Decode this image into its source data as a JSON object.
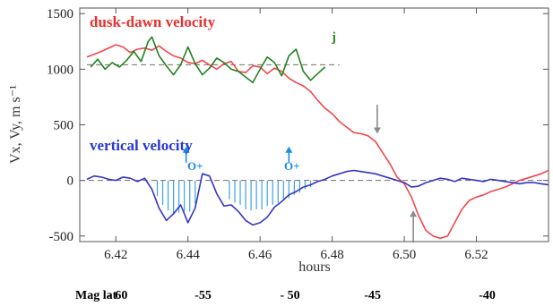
{
  "chart_data": {
    "type": "line",
    "xlabel": "hours",
    "ylabel": "Vx, Vy, m s⁻¹",
    "xlim": [
      6.41,
      6.54
    ],
    "ylim": [
      -550,
      1550
    ],
    "x_ticks": [
      6.42,
      6.44,
      6.46,
      6.48,
      6.5,
      6.52
    ],
    "x_tick_labels": [
      "6.42",
      "6.44",
      "6.46",
      "6.48",
      "6.50",
      "6.52"
    ],
    "y_ticks": [
      -500,
      0,
      500,
      1000,
      1500
    ],
    "y_tick_labels": [
      "-500",
      "0",
      "500",
      "1000",
      "1500"
    ],
    "reference_lines": [
      {
        "y": 0,
        "x_range": [
          6.41,
          6.54
        ],
        "style": "dashed"
      },
      {
        "y": 1040,
        "x_range": [
          6.412,
          6.482
        ],
        "style": "dashed"
      }
    ],
    "annotations": {
      "dusk_dawn": "dusk-dawn velocity",
      "vertical": "vertical velocity",
      "j": "j",
      "oplus_1": "O+",
      "oplus_2": "O+"
    },
    "arrows": [
      {
        "name": "oplus-arrow-1",
        "x": 6.4395,
        "y_from": 160,
        "y_to": 305,
        "color": "#1a8de0"
      },
      {
        "name": "oplus-arrow-2",
        "x": 6.468,
        "y_from": 160,
        "y_to": 305,
        "color": "#1a8de0"
      },
      {
        "name": "gray-arrow-down",
        "x": 6.4925,
        "y_from": 680,
        "y_to": 420,
        "color": "#8a8a8a"
      },
      {
        "name": "gray-arrow-up",
        "x": 6.5025,
        "y_from": -560,
        "y_to": -270,
        "color": "#8a8a8a"
      }
    ],
    "series": [
      {
        "color": "#f2474d",
        "x": [
          6.412,
          6.416,
          6.42,
          6.422,
          6.424,
          6.426,
          6.428,
          6.43,
          6.432,
          6.434,
          6.436,
          6.438,
          6.44,
          6.442,
          6.444,
          6.446,
          6.448,
          6.45,
          6.452,
          6.454,
          6.456,
          6.458,
          6.46,
          6.462,
          6.464,
          6.466,
          6.468,
          6.47,
          6.472,
          6.474,
          6.476,
          6.478,
          6.48,
          6.482,
          6.484,
          6.486,
          6.488,
          6.49,
          6.492,
          6.494,
          6.496,
          6.498,
          6.5,
          6.502,
          6.504,
          6.506,
          6.508,
          6.51,
          6.512,
          6.514,
          6.516,
          6.518,
          6.52,
          6.522,
          6.524,
          6.526,
          6.528,
          6.53,
          6.532,
          6.534,
          6.536,
          6.538,
          6.54
        ],
        "y": [
          1110,
          1160,
          1220,
          1200,
          1150,
          1180,
          1190,
          1170,
          1210,
          1160,
          1120,
          1100,
          1060,
          1050,
          1080,
          1040,
          1000,
          1050,
          1070,
          980,
          970,
          1030,
          1020,
          960,
          1010,
          980,
          920,
          880,
          850,
          800,
          720,
          650,
          600,
          530,
          480,
          430,
          420,
          400,
          350,
          250,
          150,
          30,
          -30,
          -150,
          -320,
          -450,
          -500,
          -520,
          -500,
          -380,
          -260,
          -180,
          -150,
          -130,
          -100,
          -80,
          -60,
          -30,
          0,
          20,
          40,
          60,
          90
        ]
      },
      {
        "color": "#218321",
        "x": [
          6.413,
          6.415,
          6.417,
          6.419,
          6.421,
          6.423,
          6.425,
          6.427,
          6.429,
          6.43,
          6.432,
          6.434,
          6.436,
          6.438,
          6.44,
          6.442,
          6.444,
          6.446,
          6.448,
          6.45,
          6.452,
          6.454,
          6.456,
          6.458,
          6.46,
          6.462,
          6.464,
          6.466,
          6.468,
          6.47,
          6.472,
          6.474,
          6.476,
          6.478
        ],
        "y": [
          1020,
          1090,
          1000,
          1060,
          1020,
          1080,
          1160,
          1070,
          1250,
          1290,
          1120,
          1030,
          950,
          1040,
          1200,
          1050,
          950,
          1010,
          1100,
          1060,
          1000,
          980,
          930,
          880,
          1000,
          1110,
          1060,
          940,
          1120,
          1180,
          980,
          900,
          960,
          1020
        ]
      },
      {
        "color": "#3535c9",
        "x": [
          6.412,
          6.414,
          6.416,
          6.418,
          6.42,
          6.422,
          6.424,
          6.426,
          6.428,
          6.43,
          6.432,
          6.434,
          6.436,
          6.438,
          6.44,
          6.442,
          6.444,
          6.446,
          6.448,
          6.45,
          6.452,
          6.454,
          6.456,
          6.458,
          6.46,
          6.462,
          6.464,
          6.466,
          6.468,
          6.47,
          6.472,
          6.474,
          6.476,
          6.478,
          6.48,
          6.482,
          6.484,
          6.486,
          6.488,
          6.49,
          6.492,
          6.494,
          6.496,
          6.498,
          6.5,
          6.502,
          6.504,
          6.506,
          6.508,
          6.51,
          6.512,
          6.514,
          6.516,
          6.518,
          6.52,
          6.522,
          6.524,
          6.526,
          6.528,
          6.53,
          6.532,
          6.534,
          6.536,
          6.538,
          6.54
        ],
        "y": [
          10,
          40,
          30,
          10,
          0,
          30,
          20,
          -10,
          20,
          -80,
          -250,
          -360,
          -300,
          -220,
          -380,
          -250,
          60,
          40,
          -120,
          -230,
          -220,
          -280,
          -360,
          -400,
          -380,
          -330,
          -240,
          -190,
          -130,
          -100,
          -60,
          -40,
          -10,
          10,
          40,
          60,
          80,
          90,
          80,
          70,
          60,
          40,
          20,
          0,
          -20,
          -60,
          -50,
          -20,
          0,
          20,
          10,
          -10,
          20,
          10,
          0,
          -10,
          10,
          0,
          -10,
          -20,
          -30,
          -20,
          -20,
          -30,
          -40
        ]
      }
    ],
    "shaded_bars": {
      "color": "#3fa0e0",
      "x": [
        6.4315,
        6.433,
        6.4345,
        6.436,
        6.4375,
        6.439,
        6.4405,
        6.442,
        6.4515,
        6.453,
        6.4545,
        6.456,
        6.4575,
        6.459,
        6.4605,
        6.462,
        6.4635,
        6.465,
        6.4665,
        6.468,
        6.4695,
        6.471,
        6.4725,
        6.474
      ],
      "y": [
        -140,
        -220,
        -270,
        -300,
        -290,
        -280,
        -280,
        -210,
        -170,
        -200,
        -220,
        -260,
        -270,
        -260,
        -260,
        -230,
        -220,
        -200,
        -180,
        -160,
        -130,
        -110,
        -80,
        -60
      ]
    },
    "mag_lat": {
      "label": "Mag lat",
      "values": [
        "- 60",
        "-55",
        "- 50",
        "-45",
        "-40"
      ],
      "x_positions": [
        6.4205,
        6.4442,
        6.4683,
        6.4912,
        6.523
      ]
    }
  }
}
